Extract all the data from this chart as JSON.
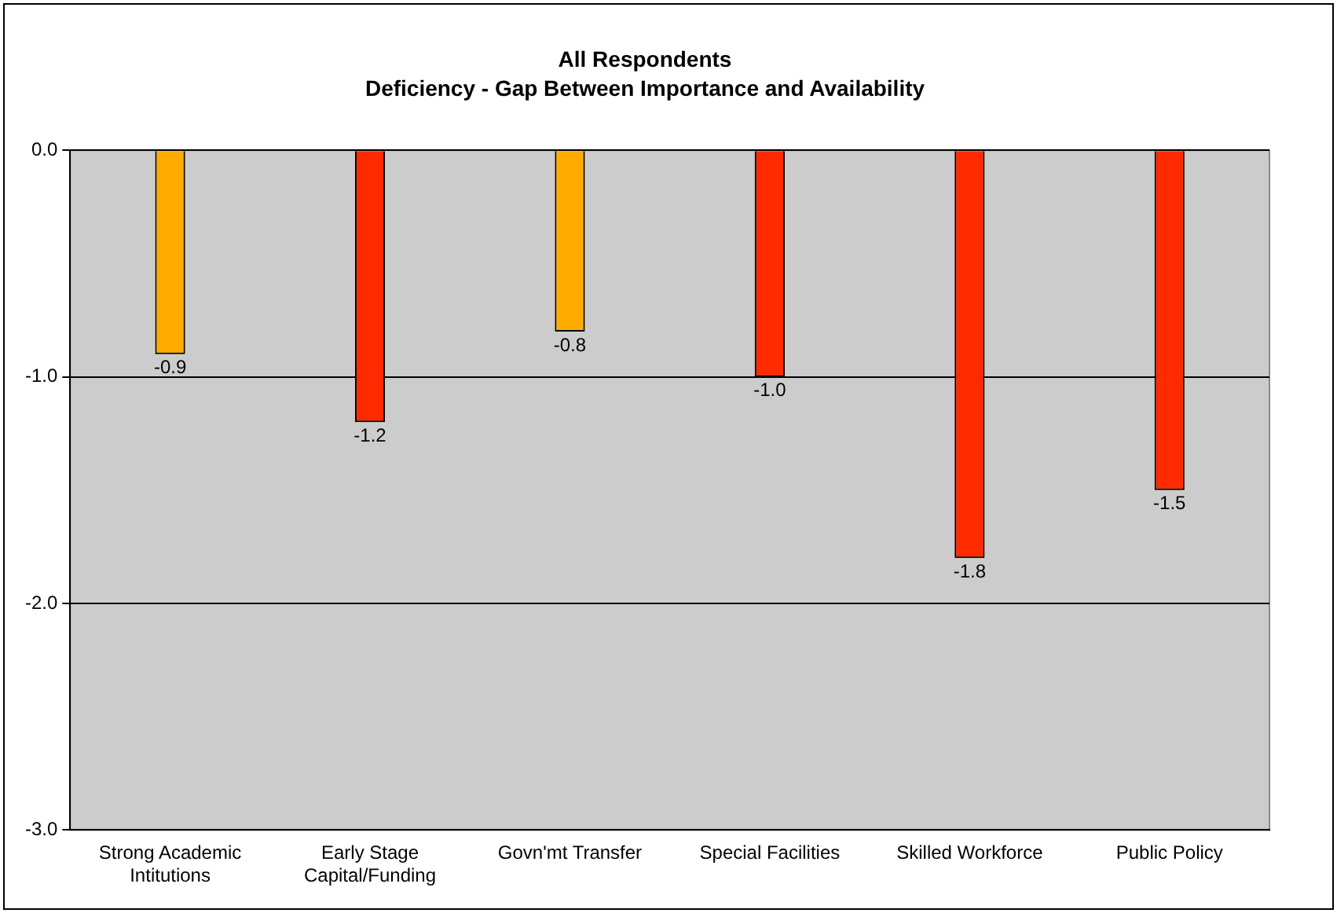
{
  "chart_data": {
    "type": "bar",
    "title": "All Respondents",
    "subtitle": "Deficiency - Gap Between Importance and Availability",
    "categories": [
      "Strong Academic Intitutions",
      "Early Stage Capital/Funding",
      "Govn'mt Transfer",
      "Special Facilities",
      "Skilled Workforce",
      "Public Policy"
    ],
    "values": [
      -0.9,
      -1.2,
      -0.8,
      -1.0,
      -1.8,
      -1.5
    ],
    "colors": [
      "#ffaa00",
      "#ff2a00",
      "#ffaa00",
      "#ff2a00",
      "#ff2a00",
      "#ff2a00"
    ],
    "ylim": [
      -3,
      0
    ],
    "yticks": [
      {
        "value": 0,
        "label": "0.0"
      },
      {
        "value": -1,
        "label": "-1.0"
      },
      {
        "value": -2,
        "label": "-2.0"
      },
      {
        "value": -3,
        "label": "-3.0"
      }
    ],
    "value_labels": [
      "-0.9",
      "-1.2",
      "-0.8",
      "-1.0",
      "-1.8",
      "-1.5"
    ],
    "grid": "y",
    "legend": false
  }
}
